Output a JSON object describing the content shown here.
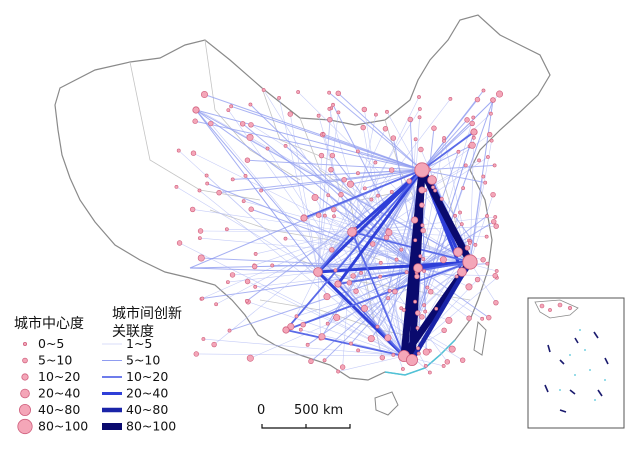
{
  "legend": {
    "centrality_title": "城市中心度",
    "link_title_line1": "城市间创新",
    "link_title_line2": "关联度",
    "centrality_classes": [
      "0~5",
      "5~10",
      "10~20",
      "20~40",
      "40~80",
      "80~100"
    ],
    "link_classes": [
      "1~5",
      "5~10",
      "10~20",
      "20~40",
      "40~80",
      "80~100"
    ]
  },
  "scale_bar": {
    "zero_label": "0",
    "distance_label": "500 km"
  },
  "colors": {
    "node_fill": "#f4a6b8",
    "node_stroke": "#d0607e",
    "link_light": "#9aa7f0",
    "link_dark": "#0a0a6e",
    "border": "#8a8a8a",
    "province_line": "#b8b8b8",
    "coast_cyan": "#4fc3d8"
  }
}
